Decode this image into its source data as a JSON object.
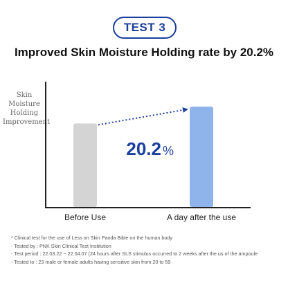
{
  "badge": "TEST 3",
  "headline": "Improved Skin Moisture Holding rate by 20.2%",
  "chart_data": {
    "type": "bar",
    "ylabel": [
      "Skin",
      "Moisture",
      "Holding",
      "Improvement"
    ],
    "categories": [
      "Before Use",
      "A day after the use"
    ],
    "values": [
      100,
      120.2
    ],
    "ylim": [
      0,
      150
    ],
    "improvement": {
      "value": "20.2",
      "unit": "%"
    },
    "grid": false,
    "colors": {
      "before": "#d4d4d4",
      "after": "#8fb4ec",
      "accent": "#1c3f9e",
      "axis": "#222222"
    }
  },
  "footnotes": [
    "* Clinical test for the use of Less on Skin Panda Bible on the human body",
    "- Tested by : PNK Skin Clinical Test Institution",
    "- Test period : 22.03.22 ~ 22.04.07 (24 hours after SLS stimulus occurred to 2 weeks after the us of the ampoule",
    "- Tested to : 23 male or female adults having sensitive skin from 20 to 59"
  ]
}
